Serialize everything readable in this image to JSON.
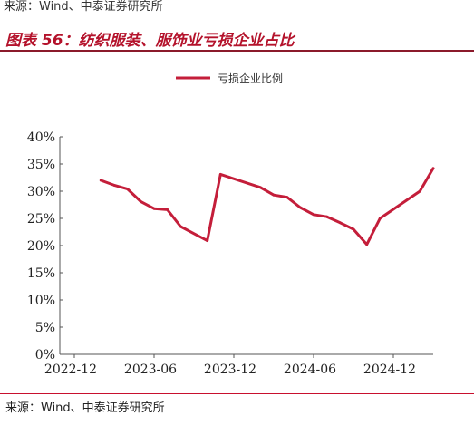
{
  "header": {
    "top_source": "来源：Wind、中泰证券研究所",
    "figure_title": "图表 56：纺织服装、服饰业亏损企业占比"
  },
  "footer": {
    "source": "来源：Wind、中泰证券研究所"
  },
  "colors": {
    "title": "#b4122b",
    "series": "#c41e3a",
    "rule": "#c8102e"
  },
  "chart_data": {
    "type": "line",
    "series": [
      {
        "name": "亏损企业比例",
        "x": [
          "2023-02",
          "2023-03",
          "2023-04",
          "2023-05",
          "2023-06",
          "2023-07",
          "2023-08",
          "2023-10",
          "2023-11",
          "2024-02",
          "2024-03",
          "2024-04",
          "2024-05",
          "2024-06",
          "2024-07",
          "2024-08",
          "2024-09",
          "2024-10",
          "2024-11",
          "2025-02",
          "2025-03"
        ],
        "values": [
          32.0,
          31.1,
          30.4,
          28.1,
          26.8,
          26.6,
          23.5,
          20.9,
          33.1,
          30.7,
          29.3,
          28.9,
          27.0,
          25.7,
          25.3,
          24.2,
          23.0,
          20.2,
          25.0,
          30.0,
          34.2
        ]
      }
    ],
    "x_ticks": [
      "2022-12",
      "2023-06",
      "2023-12",
      "2024-06",
      "2024-12"
    ],
    "y_ticks": [
      "0%",
      "5%",
      "10%",
      "15%",
      "20%",
      "25%",
      "30%",
      "35%",
      "40%"
    ],
    "ylim": [
      0,
      40
    ],
    "grid": false,
    "legend": "top"
  }
}
